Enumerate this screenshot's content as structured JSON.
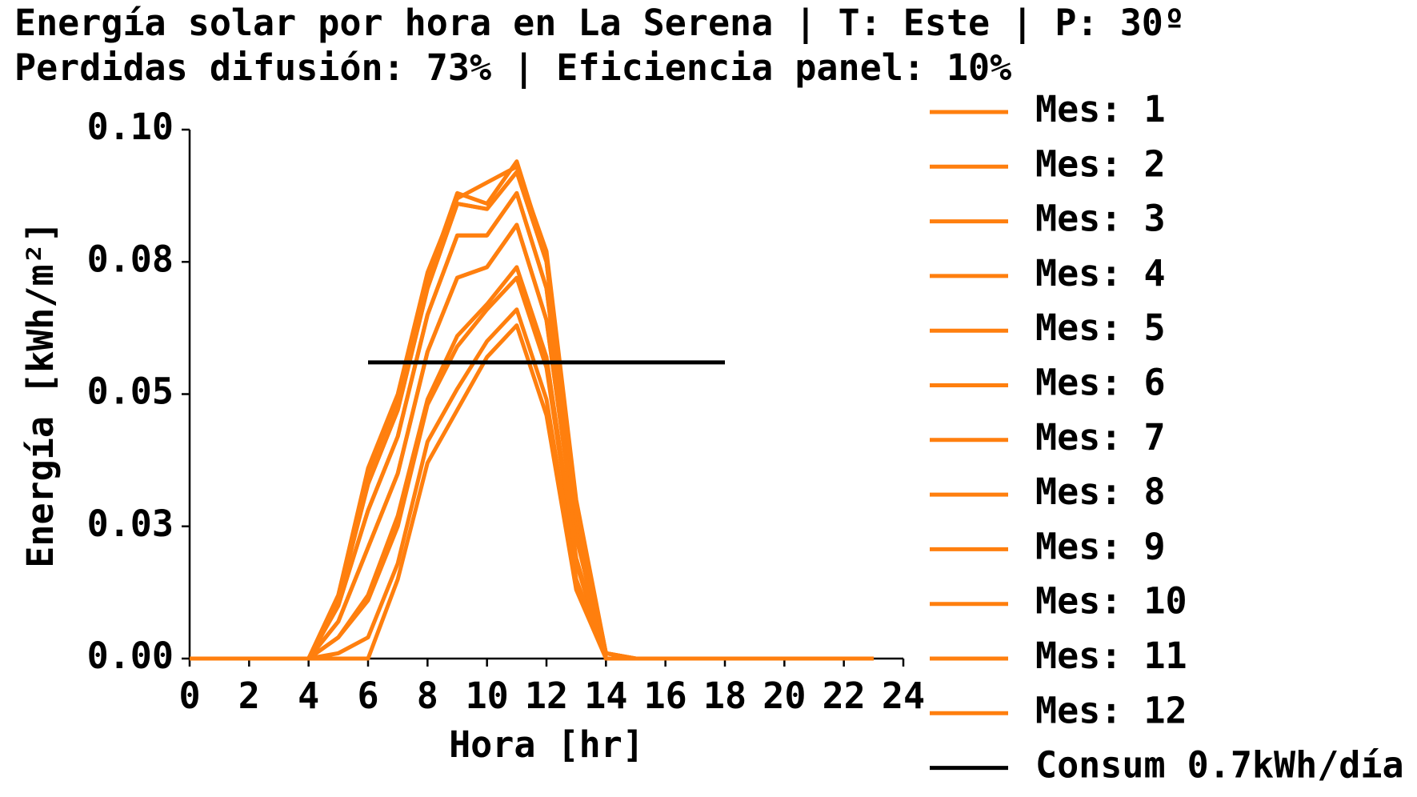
{
  "chart_data": {
    "type": "line",
    "title": "Energía solar por hora en La Serena | T: Este | P: 30º",
    "subtitle": "Perdidas difusión: 73% | Eficiencia panel: 10%",
    "xlabel": "Hora [hr]",
    "ylabel": "Energía [kWh/m²]",
    "x": [
      0,
      1,
      2,
      3,
      4,
      5,
      6,
      7,
      8,
      9,
      10,
      11,
      12,
      13,
      14,
      15,
      16,
      17,
      18,
      19,
      20,
      21,
      22,
      23
    ],
    "xlim": [
      0,
      24
    ],
    "xticks": [
      0,
      2,
      4,
      6,
      8,
      10,
      12,
      14,
      16,
      18,
      20,
      22,
      24
    ],
    "ylim": [
      0,
      0.1
    ],
    "yticks": [
      {
        "value": 0,
        "label": "0.00"
      },
      {
        "value": 0.025,
        "label": "0.03"
      },
      {
        "value": 0.05,
        "label": "0.05"
      },
      {
        "value": 0.075,
        "label": "0.08"
      },
      {
        "value": 0.1,
        "label": "0.10"
      }
    ],
    "series": [
      {
        "name": "Mes: 1",
        "color": "#ff7f0e",
        "values": [
          0,
          0,
          0,
          0,
          0,
          0.012,
          0.035,
          0.049,
          0.072,
          0.088,
          0.086,
          0.094,
          0.076,
          0.029,
          0.001,
          0,
          0,
          0,
          0,
          0,
          0,
          0,
          0,
          0
        ]
      },
      {
        "name": "Mes: 2",
        "color": "#ff7f0e",
        "values": [
          0,
          0,
          0,
          0,
          0,
          0.011,
          0.033,
          0.047,
          0.07,
          0.086,
          0.085,
          0.092,
          0.075,
          0.028,
          0.001,
          0,
          0,
          0,
          0,
          0,
          0,
          0,
          0,
          0
        ]
      },
      {
        "name": "Mes: 3",
        "color": "#ff7f0e",
        "values": [
          0,
          0,
          0,
          0,
          0,
          0.01,
          0.028,
          0.042,
          0.065,
          0.08,
          0.08,
          0.088,
          0.07,
          0.026,
          0,
          0,
          0,
          0,
          0,
          0,
          0,
          0,
          0,
          0
        ]
      },
      {
        "name": "Mes: 4",
        "color": "#ff7f0e",
        "values": [
          0,
          0,
          0,
          0,
          0,
          0.007,
          0.021,
          0.035,
          0.058,
          0.072,
          0.074,
          0.082,
          0.064,
          0.023,
          0,
          0,
          0,
          0,
          0,
          0,
          0,
          0,
          0,
          0
        ]
      },
      {
        "name": "Mes: 5",
        "color": "#ff7f0e",
        "values": [
          0,
          0,
          0,
          0,
          0,
          0.004,
          0.011,
          0.025,
          0.048,
          0.059,
          0.066,
          0.072,
          0.055,
          0.018,
          0,
          0,
          0,
          0,
          0,
          0,
          0,
          0,
          0,
          0
        ]
      },
      {
        "name": "Mes: 6",
        "color": "#ff7f0e",
        "values": [
          0,
          0,
          0,
          0,
          0,
          0,
          0,
          0.015,
          0.037,
          0.047,
          0.057,
          0.063,
          0.046,
          0.013,
          0,
          0,
          0,
          0,
          0,
          0,
          0,
          0,
          0,
          0
        ]
      },
      {
        "name": "Mes: 7",
        "color": "#ff7f0e",
        "values": [
          0,
          0,
          0,
          0,
          0,
          0.001,
          0.004,
          0.018,
          0.041,
          0.051,
          0.06,
          0.066,
          0.049,
          0.015,
          0,
          0,
          0,
          0,
          0,
          0,
          0,
          0,
          0,
          0
        ]
      },
      {
        "name": "Mes: 8",
        "color": "#ff7f0e",
        "values": [
          0,
          0,
          0,
          0,
          0,
          0.004,
          0.012,
          0.027,
          0.049,
          0.061,
          0.067,
          0.074,
          0.057,
          0.019,
          0,
          0,
          0,
          0,
          0,
          0,
          0,
          0,
          0,
          0
        ]
      },
      {
        "name": "Mes: 9",
        "color": "#ff7f0e",
        "values": [
          0,
          0,
          0,
          0,
          0,
          0.007,
          0.021,
          0.035,
          0.058,
          0.072,
          0.074,
          0.082,
          0.064,
          0.023,
          0,
          0,
          0,
          0,
          0,
          0,
          0,
          0,
          0,
          0
        ]
      },
      {
        "name": "Mes: 10",
        "color": "#ff7f0e",
        "values": [
          0,
          0,
          0,
          0,
          0,
          0.01,
          0.028,
          0.042,
          0.065,
          0.08,
          0.08,
          0.088,
          0.07,
          0.026,
          0,
          0,
          0,
          0,
          0,
          0,
          0,
          0,
          0,
          0
        ]
      },
      {
        "name": "Mes: 11",
        "color": "#ff7f0e",
        "values": [
          0,
          0,
          0,
          0,
          0,
          0.011,
          0.033,
          0.047,
          0.07,
          0.086,
          0.085,
          0.092,
          0.075,
          0.028,
          0.001,
          0,
          0,
          0,
          0,
          0,
          0,
          0,
          0,
          0
        ]
      },
      {
        "name": "Mes: 12",
        "color": "#ff7f0e",
        "values": [
          0,
          0,
          0,
          0,
          0,
          0.012,
          0.036,
          0.05,
          0.073,
          0.087,
          0.09,
          0.093,
          0.077,
          0.03,
          0.001,
          0,
          0,
          0,
          0,
          0,
          0,
          0,
          0,
          0
        ]
      },
      {
        "name": "Consum 0.7kWh/día",
        "color": "#000000",
        "x": [
          6,
          18
        ],
        "values": [
          0.056,
          0.056
        ]
      }
    ]
  }
}
